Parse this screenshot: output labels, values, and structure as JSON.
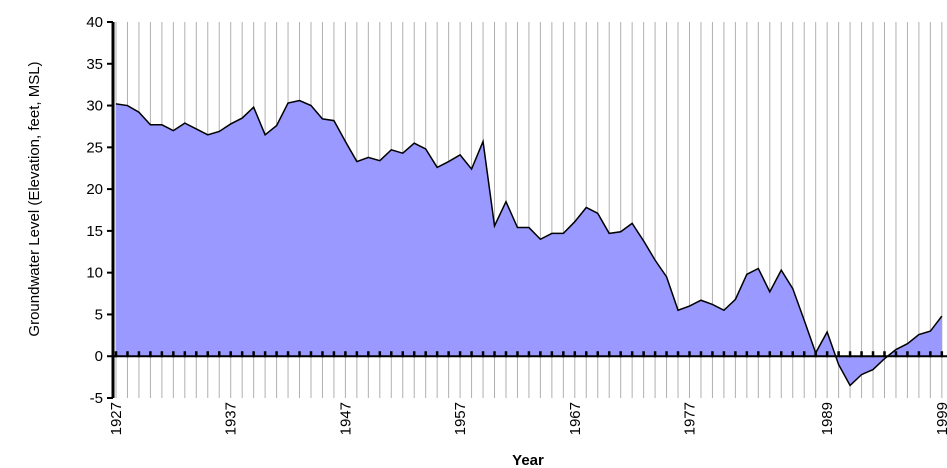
{
  "chart_data": {
    "type": "area",
    "x_label": "Year",
    "y_label": "Groundwater Level (Elevation, feet, MSL)",
    "categories": [
      "1927",
      null,
      null,
      null,
      null,
      null,
      null,
      null,
      null,
      null,
      "1937",
      null,
      null,
      null,
      null,
      null,
      null,
      null,
      null,
      null,
      "1947",
      null,
      null,
      null,
      null,
      null,
      null,
      null,
      null,
      null,
      "1957",
      null,
      null,
      null,
      null,
      null,
      null,
      null,
      null,
      null,
      "1967",
      null,
      null,
      null,
      null,
      null,
      null,
      null,
      null,
      null,
      "1977",
      null,
      null,
      null,
      null,
      null,
      null,
      null,
      null,
      null,
      null,
      null,
      "1989",
      null,
      null,
      null,
      null,
      null,
      null,
      null,
      null,
      null,
      "1999"
    ],
    "values": [
      30.2,
      30.0,
      29.2,
      27.7,
      27.7,
      27.0,
      27.9,
      27.2,
      26.5,
      26.9,
      27.8,
      28.5,
      29.8,
      26.5,
      27.6,
      30.3,
      30.6,
      30.0,
      28.4,
      28.2,
      25.7,
      23.3,
      23.8,
      23.4,
      24.7,
      24.3,
      25.5,
      24.8,
      22.6,
      23.3,
      24.1,
      22.4,
      25.7,
      15.6,
      18.5,
      15.4,
      15.4,
      14.0,
      14.7,
      14.7,
      16.1,
      17.8,
      17.1,
      14.7,
      14.9,
      15.9,
      13.8,
      11.5,
      9.5,
      5.5,
      6.0,
      6.7,
      6.2,
      5.5,
      6.8,
      9.8,
      10.5,
      7.7,
      10.3,
      8.1,
      4.3,
      0.4,
      2.9,
      -1.0,
      -3.5,
      -2.2,
      -1.6,
      -0.3,
      0.8,
      1.5,
      2.6,
      3.0,
      4.8
    ],
    "color": "#9999ff",
    "ylim": [
      -5,
      40
    ],
    "yticks": [
      -5,
      0,
      5,
      10,
      15,
      20,
      25,
      30,
      35,
      40
    ],
    "grid": true
  }
}
